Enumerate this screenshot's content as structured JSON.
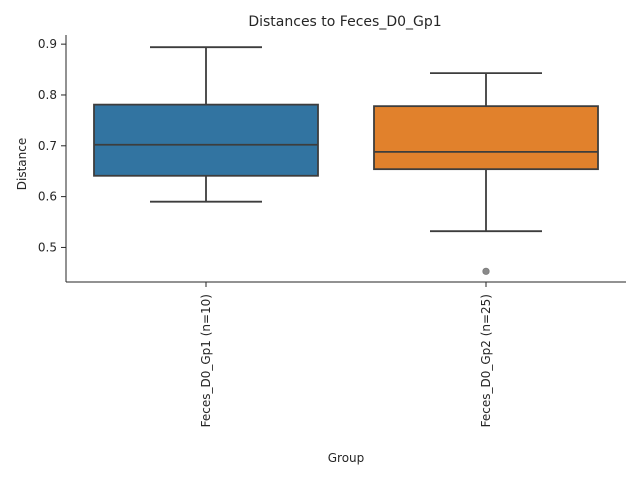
{
  "chart_data": {
    "type": "box",
    "title": "Distances to Feces_D0_Gp1",
    "xlabel": "Group",
    "ylabel": "Distance",
    "ylim": [
      0.432,
      0.918
    ],
    "yticks": [
      0.5,
      0.6,
      0.7,
      0.8,
      0.9
    ],
    "grid": false,
    "categories": [
      "Feces_D0_Gp1 (n=10)",
      "Feces_D0_Gp2 (n=25)"
    ],
    "boxes": [
      {
        "category": "Feces_D0_Gp1 (n=10)",
        "color": "#3274a1",
        "whisker_low": 0.59,
        "q1": 0.641,
        "median": 0.702,
        "q3": 0.781,
        "whisker_high": 0.894,
        "outliers": []
      },
      {
        "category": "Feces_D0_Gp2 (n=25)",
        "color": "#e1812c",
        "whisker_low": 0.532,
        "q1": 0.654,
        "median": 0.688,
        "q3": 0.778,
        "whisker_high": 0.843,
        "outliers": [
          0.453
        ]
      }
    ]
  }
}
